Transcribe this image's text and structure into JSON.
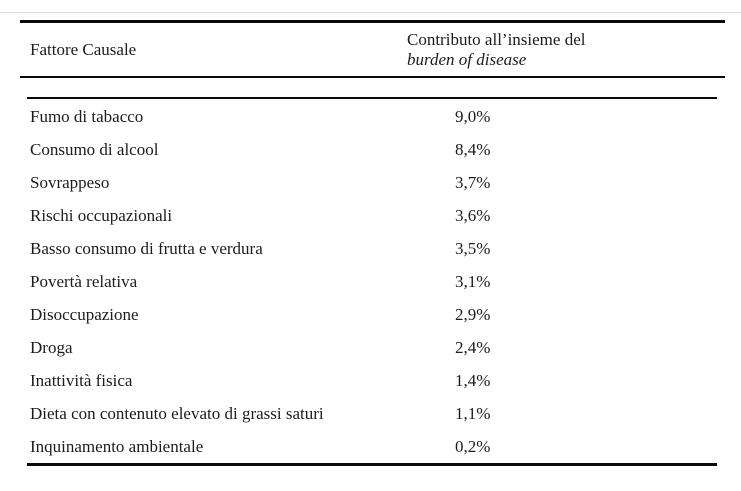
{
  "table": {
    "headers": {
      "factor": "Fattore Causale",
      "contribution_line1": "Contributo all’insieme del",
      "contribution_line2": "burden of disease"
    },
    "rows": [
      {
        "factor": "Fumo di tabacco",
        "value": "9,0%"
      },
      {
        "factor": "Consumo di alcool",
        "value": "8,4%"
      },
      {
        "factor": "Sovrappeso",
        "value": "3,7%"
      },
      {
        "factor": "Rischi occupazionali",
        "value": "3,6%"
      },
      {
        "factor": "Basso consumo di frutta e verdura",
        "value": "3,5%"
      },
      {
        "factor": "Povertà relativa",
        "value": "3,1%"
      },
      {
        "factor": "Disoccupazione",
        "value": "2,9%"
      },
      {
        "factor": "Droga",
        "value": "2,4%"
      },
      {
        "factor": "Inattività fisica",
        "value": "1,4%"
      },
      {
        "factor": "Dieta con contenuto elevato di grassi saturi",
        "value": "1,1%"
      },
      {
        "factor": "Inquinamento ambientale",
        "value": "0,2%"
      }
    ],
    "colors": {
      "text": "#1c1c1c",
      "rule": "#0a0a0a",
      "background": "#ffffff"
    }
  }
}
